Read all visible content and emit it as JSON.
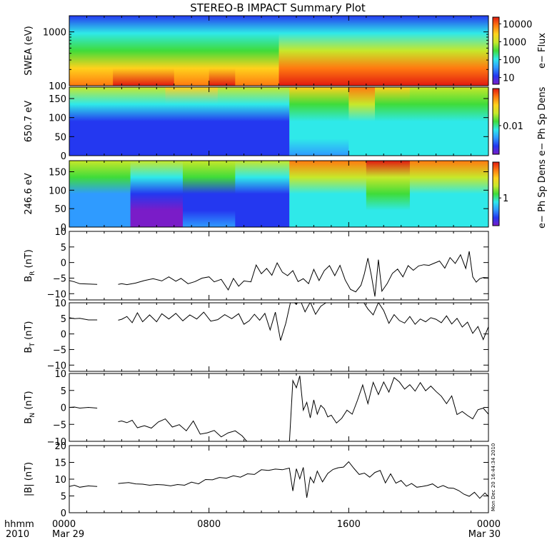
{
  "title": "STEREO-B IMPACT Summary Plot",
  "stamp": "Mon Dec 20 16:44:34 2010",
  "x_axis": {
    "corner_top": "hhmm",
    "corner_bottom": "2010",
    "ticks": [
      {
        "t": 0,
        "time": "0000",
        "date": "Mar 29"
      },
      {
        "t": 8,
        "time": "0800",
        "date": ""
      },
      {
        "t": 16,
        "time": "1600",
        "date": ""
      },
      {
        "t": 24,
        "time": "0000",
        "date": "Mar 30"
      }
    ],
    "range_hours": [
      0,
      24
    ]
  },
  "colors": {
    "rainbow": [
      "#7a1cc8",
      "#2438f0",
      "#2f9bff",
      "#2fe9e9",
      "#3fdc3a",
      "#c7e82a",
      "#ffd21c",
      "#ff7a10",
      "#e21a10"
    ]
  },
  "chart_data": [
    {
      "type": "heatmap",
      "panel": "swea",
      "ylabel": "SWEA (eV)",
      "y_scale": "log",
      "ylim": [
        100,
        2000
      ],
      "yticks": [
        {
          "v": 100,
          "label": "100"
        },
        {
          "v": 1000,
          "label": "1000"
        }
      ],
      "colorbar": {
        "label": "e− Flux",
        "scale": "log",
        "ticks": [
          "10",
          "100",
          "1000",
          "10000"
        ]
      },
      "segments": [
        {
          "x0": 0,
          "x1": 2.5,
          "stops": [
            0.92,
            0.72,
            0.55,
            0.32,
            0.12
          ]
        },
        {
          "x0": 2.5,
          "x1": 6,
          "stops": [
            0.95,
            0.75,
            0.56,
            0.32,
            0.12
          ]
        },
        {
          "x0": 6,
          "x1": 8,
          "stops": [
            0.9,
            0.72,
            0.55,
            0.32,
            0.14
          ]
        },
        {
          "x0": 8,
          "x1": 9.5,
          "stops": [
            0.95,
            0.74,
            0.55,
            0.32,
            0.14
          ]
        },
        {
          "x0": 9.5,
          "x1": 12,
          "stops": [
            0.92,
            0.74,
            0.56,
            0.34,
            0.16
          ]
        },
        {
          "x0": 12,
          "x1": 16,
          "stops": [
            1.0,
            0.85,
            0.62,
            0.36,
            0.16
          ]
        },
        {
          "x0": 16,
          "x1": 19.5,
          "stops": [
            1.0,
            0.86,
            0.62,
            0.36,
            0.16
          ]
        },
        {
          "x0": 19.5,
          "x1": 24,
          "stops": [
            0.97,
            0.84,
            0.6,
            0.34,
            0.14
          ]
        }
      ]
    },
    {
      "type": "heatmap",
      "panel": "pad650",
      "ylabel": "650.7 eV",
      "ylim": [
        0,
        180
      ],
      "yticks": [
        {
          "v": 0,
          "label": "0"
        },
        {
          "v": 50,
          "label": "50"
        },
        {
          "v": 100,
          "label": "100"
        },
        {
          "v": 150,
          "label": "150"
        }
      ],
      "colorbar": {
        "label": "e− Ph Sp Dens",
        "scale": "log",
        "ticks": [
          "0.01"
        ]
      },
      "segments": [
        {
          "x0": 0,
          "x1": 5.5,
          "stops": [
            0.18,
            0.14,
            0.16,
            0.42,
            0.62
          ]
        },
        {
          "x0": 5.5,
          "x1": 8.5,
          "stops": [
            0.1,
            0.08,
            0.12,
            0.4,
            0.72
          ]
        },
        {
          "x0": 8.5,
          "x1": 11,
          "stops": [
            0.18,
            0.14,
            0.16,
            0.42,
            0.66
          ]
        },
        {
          "x0": 11,
          "x1": 12.6,
          "stops": [
            0.14,
            0.12,
            0.16,
            0.42,
            0.64
          ]
        },
        {
          "x0": 12.6,
          "x1": 16,
          "stops": [
            0.3,
            0.32,
            0.36,
            0.55,
            0.8
          ]
        },
        {
          "x0": 16,
          "x1": 17.5,
          "stops": [
            0.32,
            0.34,
            0.4,
            0.6,
            0.92
          ]
        },
        {
          "x0": 17.5,
          "x1": 19.5,
          "stops": [
            0.32,
            0.34,
            0.38,
            0.55,
            0.78
          ]
        },
        {
          "x0": 19.5,
          "x1": 24,
          "stops": [
            0.36,
            0.36,
            0.38,
            0.48,
            0.68
          ]
        }
      ]
    },
    {
      "type": "heatmap",
      "panel": "pad246",
      "ylabel": "246.6 eV",
      "ylim": [
        0,
        180
      ],
      "yticks": [
        {
          "v": 0,
          "label": "0"
        },
        {
          "v": 50,
          "label": "50"
        },
        {
          "v": 100,
          "label": "100"
        },
        {
          "v": 150,
          "label": "150"
        }
      ],
      "colorbar": {
        "label": "e− Ph Sp Dens",
        "scale": "log",
        "ticks": [
          "1"
        ]
      },
      "segments": [
        {
          "x0": 0,
          "x1": 3.5,
          "stops": [
            0.22,
            0.2,
            0.22,
            0.45,
            0.62
          ]
        },
        {
          "x0": 3.5,
          "x1": 6.5,
          "stops": [
            0.06,
            0.04,
            0.08,
            0.4,
            0.62
          ]
        },
        {
          "x0": 6.5,
          "x1": 9.5,
          "stops": [
            0.2,
            0.16,
            0.18,
            0.45,
            0.64
          ]
        },
        {
          "x0": 9.5,
          "x1": 12.6,
          "stops": [
            0.12,
            0.1,
            0.14,
            0.42,
            0.64
          ]
        },
        {
          "x0": 12.6,
          "x1": 17,
          "stops": [
            0.34,
            0.34,
            0.42,
            0.62,
            0.86
          ]
        },
        {
          "x0": 17,
          "x1": 19.5,
          "stops": [
            0.4,
            0.42,
            0.5,
            0.66,
            0.96
          ]
        },
        {
          "x0": 19.5,
          "x1": 24,
          "stops": [
            0.34,
            0.34,
            0.42,
            0.6,
            0.86
          ]
        }
      ]
    },
    {
      "type": "line",
      "panel": "br",
      "ylabel": "B",
      "ylabel_sub": "R",
      "ylabel_unit": " (nT)",
      "ylim": [
        -12,
        10
      ],
      "yticks": [
        {
          "v": -10,
          "label": "−10"
        },
        {
          "v": -5,
          "label": "−5"
        },
        {
          "v": 0,
          "label": "0"
        },
        {
          "v": 5,
          "label": "5"
        },
        {
          "v": 10,
          "label": "10"
        }
      ],
      "x": [
        0,
        0.3,
        0.6,
        1.1,
        1.6,
        null,
        2.8,
        3.0,
        3.3,
        3.8,
        4.3,
        4.8,
        5.3,
        5.7,
        6.1,
        6.4,
        6.8,
        7.2,
        7.6,
        8.0,
        8.3,
        8.7,
        9.1,
        9.4,
        9.7,
        10.0,
        10.4,
        10.7,
        11.0,
        11.3,
        11.6,
        11.9,
        12.2,
        12.5,
        12.8,
        13.1,
        13.4,
        13.7,
        14.0,
        14.3,
        14.6,
        14.9,
        15.2,
        15.5,
        15.8,
        16.1,
        16.4,
        16.7,
        16.9,
        17.1,
        17.3,
        17.5,
        17.7,
        17.9,
        18.2,
        18.5,
        18.8,
        19.1,
        19.4,
        19.7,
        20.0,
        20.3,
        20.6,
        20.9,
        21.2,
        21.5,
        21.8,
        22.1,
        22.4,
        22.7,
        22.9,
        23.1,
        23.3,
        23.5,
        23.7,
        24.0
      ],
      "y": [
        -5.8,
        -6.2,
        -6.8,
        -6.9,
        -7.0,
        null,
        -7.0,
        -6.8,
        -7.1,
        -6.6,
        -5.8,
        -5.2,
        -5.9,
        -4.6,
        -6.0,
        -5.1,
        -6.8,
        -6.1,
        -5.0,
        -4.6,
        -6.2,
        -5.4,
        -8.8,
        -5.1,
        -7.6,
        -5.9,
        -6.2,
        -0.8,
        -3.6,
        -1.9,
        -4.1,
        -0.1,
        -3.1,
        -4.2,
        -2.6,
        -6.1,
        -5.2,
        -6.8,
        -2.2,
        -5.8,
        -2.6,
        -1.0,
        -4.2,
        -0.9,
        -5.6,
        -8.6,
        -9.4,
        -7.3,
        -3.6,
        1.4,
        -4.2,
        -10.9,
        0.9,
        -9.2,
        -6.8,
        -3.5,
        -2.1,
        -4.6,
        -1.0,
        -2.5,
        -1.1,
        -0.7,
        -0.9,
        -0.2,
        0.5,
        -1.8,
        1.6,
        -0.3,
        2.5,
        -1.9,
        3.6,
        -4.6,
        -6.3,
        -5.2,
        -4.8,
        -4.9
      ]
    },
    {
      "type": "line",
      "panel": "bt",
      "ylabel": "B",
      "ylabel_sub": "T",
      "ylabel_unit": " (nT)",
      "ylim": [
        -12,
        10
      ],
      "yticks": [
        {
          "v": -10,
          "label": "−10"
        },
        {
          "v": -5,
          "label": "−5"
        },
        {
          "v": 0,
          "label": "0"
        },
        {
          "v": 5,
          "label": "5"
        },
        {
          "v": 10,
          "label": "10"
        }
      ],
      "x": [
        0,
        0.3,
        0.6,
        1.1,
        1.6,
        null,
        2.8,
        3.0,
        3.3,
        3.6,
        3.9,
        4.2,
        4.6,
        5.0,
        5.3,
        5.7,
        6.1,
        6.5,
        6.9,
        7.3,
        7.7,
        8.1,
        8.5,
        8.9,
        9.3,
        9.7,
        10.0,
        10.3,
        10.6,
        10.9,
        11.2,
        11.5,
        11.8,
        12.1,
        12.4,
        12.7,
        13.0,
        13.2,
        13.5,
        13.8,
        14.1,
        14.4,
        14.7,
        15.0,
        15.3,
        15.6,
        15.9,
        16.2,
        16.5,
        16.8,
        17.1,
        17.4,
        17.7,
        18.0,
        18.3,
        18.6,
        18.9,
        19.2,
        19.5,
        19.8,
        20.1,
        20.4,
        20.7,
        21.0,
        21.3,
        21.6,
        21.9,
        22.2,
        22.5,
        22.8,
        23.1,
        23.4,
        23.7,
        24.0
      ],
      "y": [
        5.2,
        4.9,
        5.0,
        4.5,
        4.5,
        null,
        4.4,
        4.7,
        5.6,
        3.6,
        6.8,
        3.9,
        6.1,
        3.9,
        6.5,
        4.8,
        6.6,
        4.2,
        6.1,
        4.8,
        7.0,
        4.1,
        4.6,
        6.2,
        4.9,
        6.5,
        3.1,
        4.2,
        6.3,
        4.4,
        6.6,
        1.3,
        7.0,
        -2.1,
        3.5,
        11.0,
        9.5,
        11.2,
        7.1,
        10.2,
        6.3,
        8.9,
        10.0,
        11.2,
        10.4,
        11.0,
        10.0,
        11.5,
        9.8,
        10.6,
        8.0,
        6.1,
        10.1,
        7.5,
        3.4,
        6.2,
        4.3,
        3.5,
        5.6,
        3.1,
        4.8,
        3.9,
        5.2,
        4.7,
        3.6,
        5.8,
        3.2,
        5.0,
        2.2,
        3.8,
        0.2,
        2.4,
        -1.8,
        2.3
      ]
    },
    {
      "type": "line",
      "panel": "bn",
      "ylabel": "B",
      "ylabel_sub": "N",
      "ylabel_unit": " (nT)",
      "ylim": [
        -10,
        10
      ],
      "yticks": [
        {
          "v": -10,
          "label": "−10"
        },
        {
          "v": -5,
          "label": "−5"
        },
        {
          "v": 0,
          "label": "0"
        },
        {
          "v": 5,
          "label": "5"
        },
        {
          "v": 10,
          "label": "10"
        }
      ],
      "x": [
        0,
        0.3,
        0.6,
        1.1,
        1.6,
        null,
        2.8,
        3.0,
        3.3,
        3.6,
        3.9,
        4.3,
        4.7,
        5.1,
        5.5,
        5.9,
        6.3,
        6.7,
        7.1,
        7.5,
        7.9,
        8.3,
        8.7,
        9.1,
        9.5,
        9.9,
        10.2,
        10.5,
        10.8,
        11.1,
        11.4,
        11.7,
        12.0,
        12.3,
        12.6,
        12.8,
        13.0,
        13.2,
        13.4,
        13.6,
        13.8,
        14.0,
        14.2,
        14.4,
        14.6,
        14.8,
        15.0,
        15.3,
        15.6,
        15.9,
        16.2,
        16.5,
        16.8,
        17.1,
        17.4,
        17.7,
        18.0,
        18.3,
        18.6,
        18.9,
        19.2,
        19.5,
        19.8,
        20.1,
        20.4,
        20.7,
        21.0,
        21.3,
        21.6,
        21.9,
        22.2,
        22.5,
        22.8,
        23.1,
        23.4,
        23.7,
        24.0
      ],
      "y": [
        0.0,
        0.1,
        -0.2,
        0.0,
        -0.2,
        null,
        -4.2,
        -4.0,
        -4.5,
        -3.8,
        -6.0,
        -5.4,
        -6.1,
        -4.3,
        -3.4,
        -5.8,
        -5.1,
        -6.9,
        -4.0,
        -7.9,
        -7.5,
        -6.8,
        -8.7,
        -7.5,
        -6.9,
        -8.4,
        -10.2,
        -11.4,
        -12.3,
        -11.9,
        -12.4,
        -12.0,
        -12.2,
        -12.5,
        -10.6,
        7.9,
        5.8,
        9.3,
        -0.8,
        1.5,
        -3.1,
        2.2,
        -2.0,
        0.6,
        -0.4,
        -2.8,
        -2.3,
        -4.6,
        -3.2,
        -0.8,
        -2.0,
        2.1,
        6.6,
        1.1,
        7.4,
        3.8,
        7.5,
        4.5,
        8.8,
        7.5,
        5.4,
        6.7,
        4.8,
        7.3,
        4.9,
        6.3,
        4.7,
        3.3,
        1.1,
        3.4,
        -2.1,
        -1.2,
        -2.4,
        -3.4,
        -0.7,
        -0.2,
        -2.0
      ]
    },
    {
      "type": "line",
      "panel": "bmag",
      "ylabel": "|B| (nT)",
      "ylim": [
        0,
        20
      ],
      "yticks": [
        {
          "v": 0,
          "label": "0"
        },
        {
          "v": 5,
          "label": "5"
        },
        {
          "v": 10,
          "label": "10"
        },
        {
          "v": 15,
          "label": "15"
        },
        {
          "v": 20,
          "label": "20"
        }
      ],
      "x": [
        0,
        0.3,
        0.6,
        1.1,
        1.6,
        null,
        2.8,
        3.0,
        3.4,
        3.8,
        4.2,
        4.6,
        5.0,
        5.4,
        5.8,
        6.2,
        6.6,
        7.0,
        7.4,
        7.8,
        8.2,
        8.6,
        9.0,
        9.4,
        9.8,
        10.2,
        10.6,
        11.0,
        11.4,
        11.8,
        12.2,
        12.6,
        12.8,
        13.0,
        13.2,
        13.4,
        13.6,
        13.8,
        14.0,
        14.2,
        14.5,
        14.8,
        15.1,
        15.4,
        15.7,
        16.0,
        16.3,
        16.6,
        16.9,
        17.2,
        17.5,
        17.8,
        18.1,
        18.4,
        18.7,
        19.0,
        19.3,
        19.6,
        19.9,
        20.2,
        20.5,
        20.8,
        21.1,
        21.4,
        21.7,
        22.0,
        22.3,
        22.6,
        22.9,
        23.2,
        23.5,
        23.8,
        24.0
      ],
      "y": [
        7.8,
        8.2,
        7.6,
        8.0,
        7.8,
        null,
        8.7,
        8.8,
        9.0,
        8.6,
        8.5,
        8.2,
        8.4,
        8.3,
        8.0,
        8.4,
        8.2,
        9.1,
        8.6,
        9.9,
        9.8,
        10.5,
        10.3,
        11.0,
        10.6,
        11.6,
        11.4,
        12.8,
        12.6,
        13.0,
        12.8,
        13.3,
        6.5,
        13.1,
        10.1,
        13.5,
        4.5,
        10.6,
        8.9,
        12.4,
        9.2,
        11.7,
        12.9,
        13.4,
        13.6,
        15.2,
        13.2,
        11.4,
        11.8,
        10.6,
        12.0,
        12.6,
        8.9,
        11.6,
        8.8,
        9.6,
        7.9,
        8.7,
        7.6,
        7.8,
        8.1,
        8.6,
        7.5,
        8.1,
        7.4,
        7.3,
        6.6,
        5.5,
        4.9,
        6.1,
        4.3,
        5.9,
        4.8
      ]
    }
  ]
}
